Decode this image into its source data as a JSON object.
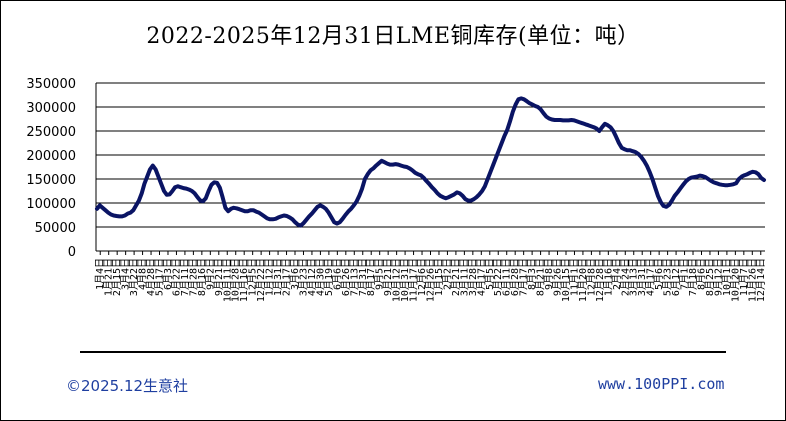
{
  "chart_data": {
    "type": "line",
    "title": "2022-2025年12月31日LME铜库存(单位：吨）",
    "xlabel": "",
    "ylabel": "",
    "ylim": [
      0,
      350000
    ],
    "yticks": [
      0,
      50000,
      100000,
      150000,
      200000,
      250000,
      300000,
      350000
    ],
    "grid": true,
    "legend": "none",
    "line_color": "#0a1464",
    "x_tick_labels": [
      "1月4日",
      "1月21日",
      "2月15日",
      "3月4日",
      "3月22日",
      "4月8日",
      "4月28日",
      "5月17日",
      "6月3日",
      "6月22日",
      "7月11日",
      "7月28日",
      "8月16日",
      "9月2日",
      "9月21日",
      "10月11日",
      "10月28日",
      "11月16日",
      "12月5日",
      "12月22日",
      "1月12日",
      "1月31日",
      "2月17日",
      "3月6日",
      "3月23日",
      "4月12日",
      "4月30日",
      "5月19日",
      "6月6日",
      "6月26日",
      "7月13日",
      "7月31日",
      "8月17日",
      "9月5日",
      "9月21日",
      "10月12日",
      "10月31日",
      "11月17日",
      "12月6日",
      "12月26日",
      "1月15日",
      "2月2日",
      "2月21日",
      "3月11日",
      "3月28日",
      "4月17日",
      "5月5日",
      "5月22日",
      "6月11日",
      "6月28日",
      "7月17日",
      "8月3日",
      "8月21日",
      "9月8日",
      "9月26日",
      "10月15日",
      "11月1日",
      "11月20日",
      "12月8日",
      "12月28日",
      "1月16日",
      "2月4日",
      "2月24日",
      "3月13日",
      "3月31日",
      "4月17日",
      "5月6日",
      "5月23日",
      "6月12日",
      "7月1日",
      "7月18日",
      "8月6日",
      "8月25日",
      "9月12日",
      "10月1日",
      "10月20日",
      "11月7日",
      "11月26日",
      "12月14日"
    ],
    "series": [
      {
        "values": [
          88000,
          95000,
          90000,
          85000,
          80000,
          76000,
          74000,
          73000,
          72000,
          72000,
          74000,
          78000,
          80000,
          85000,
          95000,
          105000,
          120000,
          140000,
          155000,
          170000,
          178000,
          170000,
          155000,
          140000,
          125000,
          117000,
          118000,
          125000,
          133000,
          135000,
          133000,
          131000,
          130000,
          128000,
          125000,
          120000,
          112000,
          105000,
          104000,
          110000,
          125000,
          138000,
          143000,
          142000,
          132000,
          112000,
          90000,
          83000,
          88000,
          90000,
          89000,
          87000,
          85000,
          83000,
          83000,
          85000,
          85000,
          82000,
          80000,
          76000,
          72000,
          68000,
          66000,
          66000,
          67000,
          70000,
          72000,
          74000,
          73000,
          70000,
          66000,
          60000,
          55000,
          53000,
          58000,
          65000,
          72000,
          78000,
          85000,
          92000,
          95000,
          92000,
          88000,
          80000,
          70000,
          60000,
          57000,
          60000,
          67000,
          75000,
          82000,
          88000,
          95000,
          103000,
          115000,
          130000,
          150000,
          160000,
          168000,
          172000,
          178000,
          183000,
          188000,
          185000,
          182000,
          180000,
          180000,
          181000,
          180000,
          178000,
          176000,
          175000,
          172000,
          168000,
          163000,
          160000,
          158000,
          153000,
          146000,
          140000,
          133000,
          127000,
          120000,
          115000,
          112000,
          110000,
          112000,
          115000,
          118000,
          122000,
          120000,
          115000,
          108000,
          105000,
          105000,
          108000,
          112000,
          118000,
          125000,
          135000,
          150000,
          165000,
          180000,
          195000,
          210000,
          225000,
          240000,
          252000,
          270000,
          290000,
          305000,
          316000,
          318000,
          316000,
          312000,
          308000,
          305000,
          302000,
          300000,
          295000,
          287000,
          280000,
          276000,
          274000,
          273000,
          273000,
          273000,
          272000,
          272000,
          272000,
          273000,
          272000,
          270000,
          268000,
          266000,
          264000,
          262000,
          260000,
          258000,
          255000,
          250000,
          258000,
          265000,
          262000,
          258000,
          250000,
          238000,
          225000,
          215000,
          212000,
          210000,
          210000,
          208000,
          206000,
          202000,
          196000,
          188000,
          178000,
          165000,
          150000,
          132000,
          115000,
          102000,
          94000,
          92000,
          96000,
          105000,
          115000,
          122000,
          130000,
          138000,
          145000,
          150000,
          153000,
          154000,
          155000,
          157000,
          156000,
          154000,
          150000,
          146000,
          143000,
          141000,
          139000,
          138000,
          137000,
          137000,
          138000,
          139000,
          141000,
          150000,
          155000,
          158000,
          160000,
          163000,
          165000,
          164000,
          160000,
          152000,
          148000
        ]
      }
    ]
  },
  "footer": {
    "copyright": "©2025.12生意社",
    "site": "www.100PPI.com"
  }
}
